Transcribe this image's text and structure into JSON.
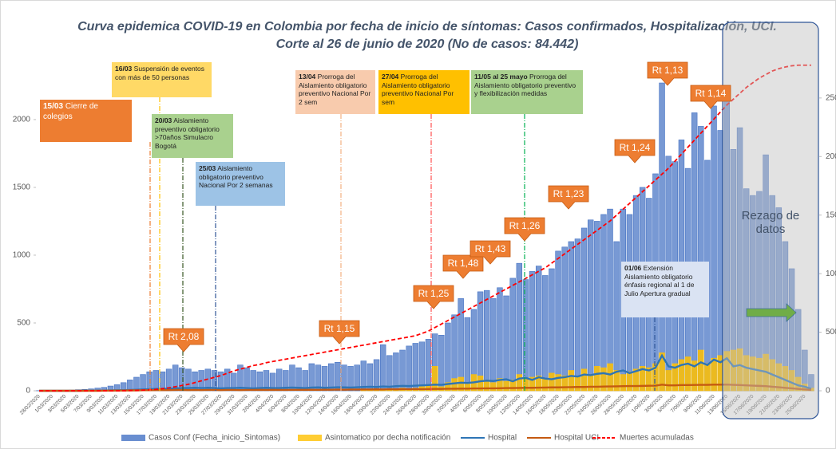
{
  "chart_data": {
    "type": "bar",
    "title": "Curva epidemica COVID-19 en Colombia  por fecha de inicio de síntomas: Casos confirmados, Hospitalización, UCI.",
    "subtitle": "Corte  al 26 de junio de 2020 (No de casos: 84.442)",
    "categories": [
      "28/02/2020",
      null,
      "1/03/2020",
      null,
      "3/03/2020",
      null,
      "5/03/2020",
      null,
      "7/03/2020",
      null,
      "9/03/2020",
      null,
      "11/03/2020",
      null,
      "13/03/2020",
      null,
      "15/03/2020",
      null,
      "17/03/2020",
      null,
      "19/03/2020",
      null,
      "21/03/2020",
      null,
      "23/03/2020",
      null,
      "25/03/2020",
      null,
      "27/03/2020",
      null,
      "29/03/2020",
      null,
      "31/03/2020",
      null,
      "2/04/2020",
      null,
      "4/04/2020",
      null,
      "6/04/2020",
      null,
      "8/04/2020",
      null,
      "10/04/2020",
      null,
      "12/04/2020",
      null,
      "14/04/2020",
      null,
      "16/04/2020",
      null,
      "18/04/2020",
      null,
      "20/04/2020",
      null,
      "22/04/2020",
      null,
      "24/04/2020",
      null,
      "26/04/2020",
      null,
      "28/04/2020",
      null,
      "30/04/2020",
      null,
      "2/05/2020",
      null,
      "4/05/2020",
      null,
      "6/05/2020",
      null,
      "8/05/2020",
      null,
      "10/05/2020",
      null,
      "12/05/2020",
      null,
      "14/05/2020",
      null,
      "16/05/2020",
      null,
      "18/05/2020",
      null,
      "20/05/2020",
      null,
      "22/05/2020",
      null,
      "24/05/2020",
      null,
      "26/05/2020",
      null,
      "28/05/2020",
      null,
      "30/05/2020",
      null,
      "1/06/2020",
      null,
      "3/06/2020",
      null,
      "5/06/2020",
      null,
      "7/06/2020",
      null,
      "9/06/2020",
      null,
      "11/06/2020",
      null,
      "13/06/2020",
      null,
      "15/06/2020",
      null,
      "17/06/2020",
      null,
      "19/06/2020",
      null,
      "21/06/2020",
      null,
      "23/06/2020",
      null,
      "25/06/2020",
      null
    ],
    "series": [
      {
        "name": "Casos Conf (Fecha_inicio_Sintomas)",
        "type": "bar",
        "color": "#4472c4",
        "values": [
          1,
          0,
          1,
          2,
          3,
          5,
          8,
          10,
          14,
          20,
          25,
          35,
          45,
          60,
          80,
          100,
          120,
          140,
          150,
          140,
          160,
          190,
          170,
          160,
          140,
          150,
          160,
          150,
          140,
          160,
          130,
          190,
          170,
          150,
          140,
          150,
          130,
          160,
          150,
          190,
          170,
          150,
          200,
          190,
          180,
          200,
          210,
          190,
          180,
          190,
          220,
          200,
          230,
          340,
          260,
          280,
          300,
          330,
          350,
          360,
          380,
          420,
          410,
          500,
          560,
          680,
          540,
          600,
          730,
          740,
          680,
          760,
          700,
          830,
          940,
          820,
          880,
          920,
          850,
          900,
          1030,
          1060,
          1100,
          1120,
          1200,
          1260,
          1250,
          1300,
          1340,
          1100,
          1340,
          1300,
          1440,
          1500,
          1420,
          1600,
          2270,
          1730,
          1690,
          1850,
          1640,
          2050,
          1950,
          1700,
          2100,
          1920,
          2150,
          1780,
          1940,
          1490,
          1440,
          1470,
          1740,
          1440,
          1350,
          1100,
          900,
          600,
          300,
          120
        ]
      },
      {
        "name": "Asintomatico por decha notificación",
        "type": "bar",
        "color": "#ffc000",
        "values": [
          0,
          0,
          0,
          0,
          0,
          0,
          0,
          0,
          0,
          0,
          0,
          0,
          0,
          0,
          0,
          0,
          0,
          0,
          0,
          0,
          0,
          0,
          0,
          0,
          0,
          0,
          0,
          0,
          0,
          0,
          0,
          0,
          0,
          0,
          0,
          0,
          0,
          0,
          0,
          0,
          0,
          0,
          0,
          0,
          0,
          0,
          0,
          0,
          0,
          0,
          5,
          5,
          10,
          10,
          15,
          10,
          20,
          15,
          20,
          30,
          40,
          180,
          30,
          60,
          90,
          100,
          60,
          120,
          110,
          80,
          60,
          90,
          70,
          80,
          120,
          90,
          100,
          110,
          90,
          130,
          120,
          110,
          150,
          100,
          160,
          120,
          180,
          170,
          200,
          150,
          120,
          140,
          160,
          180,
          170,
          200,
          280,
          150,
          200,
          230,
          250,
          220,
          300,
          200,
          240,
          260,
          290,
          300,
          310,
          260,
          250,
          240,
          270,
          230,
          200,
          180,
          150,
          100,
          50,
          20
        ]
      },
      {
        "name": "Hospital",
        "type": "line",
        "color": "#2e75b6",
        "values": [
          0,
          0,
          0,
          0,
          0,
          0,
          0,
          1,
          1,
          2,
          2,
          3,
          4,
          5,
          6,
          8,
          10,
          12,
          14,
          15,
          16,
          18,
          20,
          20,
          22,
          20,
          22,
          20,
          18,
          20,
          20,
          22,
          20,
          18,
          20,
          22,
          20,
          20,
          22,
          24,
          22,
          20,
          24,
          25,
          22,
          24,
          26,
          25,
          24,
          26,
          28,
          30,
          28,
          32,
          30,
          34,
          36,
          35,
          38,
          40,
          42,
          45,
          44,
          50,
          55,
          60,
          58,
          62,
          70,
          75,
          72,
          80,
          85,
          70,
          90,
          95,
          80,
          100,
          90,
          85,
          95,
          100,
          110,
          105,
          120,
          115,
          125,
          130,
          120,
          140,
          150,
          130,
          145,
          160,
          150,
          170,
          260,
          180,
          170,
          190,
          200,
          180,
          210,
          190,
          230,
          210,
          240,
          180,
          190,
          170,
          160,
          150,
          140,
          120,
          100,
          80,
          60,
          40,
          30,
          15
        ]
      },
      {
        "name": "Hospital UCI",
        "type": "line",
        "color": "#c55a11",
        "values": [
          0,
          0,
          0,
          0,
          0,
          0,
          0,
          0,
          0,
          0,
          1,
          1,
          2,
          2,
          3,
          3,
          4,
          4,
          5,
          5,
          5,
          6,
          6,
          5,
          6,
          5,
          6,
          6,
          5,
          6,
          6,
          5,
          6,
          6,
          7,
          6,
          7,
          6,
          6,
          7,
          7,
          7,
          8,
          7,
          8,
          8,
          9,
          8,
          9,
          9,
          10,
          10,
          11,
          10,
          12,
          11,
          12,
          12,
          13,
          12,
          13,
          14,
          14,
          15,
          15,
          16,
          16,
          17,
          17,
          18,
          18,
          19,
          20,
          20,
          21,
          22,
          22,
          23,
          24,
          25,
          25,
          26,
          27,
          28,
          28,
          30,
          30,
          31,
          32,
          33,
          34,
          35,
          35,
          36,
          37,
          38,
          45,
          40,
          40,
          42,
          42,
          43,
          44,
          44,
          45,
          45,
          46,
          44,
          42,
          40,
          38,
          36,
          34,
          30,
          26,
          22,
          18,
          14,
          10,
          6
        ]
      },
      {
        "name": "Muertes acumuladas",
        "type": "line",
        "style": "dashed",
        "axis": "y2",
        "color": "#ff0000",
        "values": [
          0,
          0,
          0,
          0,
          0,
          0,
          0,
          0,
          0,
          0,
          0,
          0,
          0,
          1,
          2,
          3,
          5,
          8,
          12,
          18,
          25,
          35,
          45,
          55,
          70,
          85,
          100,
          115,
          130,
          150,
          170,
          185,
          200,
          215,
          225,
          240,
          250,
          260,
          270,
          280,
          290,
          300,
          310,
          320,
          330,
          340,
          350,
          360,
          370,
          380,
          390,
          400,
          410,
          420,
          430,
          440,
          450,
          460,
          470,
          490,
          510,
          540,
          570,
          600,
          630,
          660,
          690,
          720,
          750,
          780,
          810,
          840,
          870,
          900,
          930,
          960,
          990,
          1020,
          1050,
          1090,
          1130,
          1170,
          1210,
          1250,
          1290,
          1330,
          1370,
          1410,
          1450,
          1500,
          1550,
          1600,
          1650,
          1700,
          1750,
          1800,
          1850,
          1900,
          1960,
          2020,
          2080,
          2140,
          2200,
          2260,
          2320,
          2380,
          2440,
          2490,
          2540,
          2590,
          2630,
          2670,
          2700,
          2730,
          2750,
          2765,
          2775,
          2780,
          2780,
          2780
        ]
      }
    ],
    "ylim": [
      0,
      2470
    ],
    "yticks": [
      0,
      500,
      1000,
      1500,
      2000
    ],
    "y2lim": [
      0,
      2860
    ],
    "y2ticks": [
      0,
      500,
      1000,
      1500,
      2000,
      2500
    ],
    "grid": false,
    "legend": "bottom",
    "annotations": [
      {
        "date": "15/03",
        "text": "Cierre de colegios"
      },
      {
        "date": "16/03",
        "text": "Suspensión de eventos con más de 50 personas"
      },
      {
        "date": "20/03",
        "text": "Aislamiento preventivo obligatorio  >70años Simulacro Bogotá"
      },
      {
        "date": "25/03",
        "text": "Aislamiento obligatorio preventivo Nacional Por 2 semanas"
      },
      {
        "date": "13/04",
        "text": "Prorroga del Aislamiento obligatorio preventivo Nacional Por 2 sem"
      },
      {
        "date": "27/04",
        "text": "Prorroga del Aislamiento obligatorio preventivo  Nacional  Por sem"
      },
      {
        "date": "11/05 al 25 mayo",
        "text": "Prorroga del Aislamiento obligatorio preventivo y flexibilización medidas"
      },
      {
        "date": "01/06",
        "text": "Extensión Aislamiento obligatorio énfasis regional al 1 de Julio Apertura gradual"
      }
    ],
    "rt_labels": [
      "Rt 2,08",
      "Rt 1,15",
      "Rt 1,25",
      "Rt 1,48",
      "Rt 1,43",
      "Rt 1,26",
      "Rt 1,23",
      "Rt 1,24",
      "Rt 1,13",
      "Rt 1,14"
    ],
    "lag_note": "Rezago de datos"
  }
}
